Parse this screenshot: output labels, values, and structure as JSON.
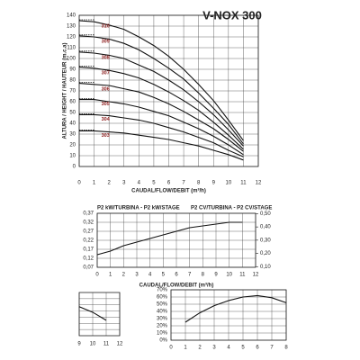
{
  "chart_data": [
    {
      "type": "line",
      "title": "V-NOX 300",
      "ylabel": "ALTURA / HEIGHT / HAUTEUR (m.c.a)",
      "xlabel": "CAUDAL/FLOW/DEBIT (m³/h)",
      "x": [
        0,
        1,
        2,
        3,
        4,
        5,
        6,
        7,
        8,
        9,
        10,
        11
      ],
      "xlim": [
        0,
        12
      ],
      "ylim": [
        0,
        140
      ],
      "xticks": [
        0,
        1,
        2,
        3,
        4,
        5,
        6,
        7,
        8,
        9,
        10,
        11,
        12
      ],
      "yticks": [
        0,
        10,
        20,
        30,
        40,
        50,
        60,
        70,
        80,
        90,
        100,
        110,
        120,
        130,
        140
      ],
      "grid": true,
      "series": [
        {
          "name": "310",
          "color": "#111",
          "values": [
            135,
            134,
            131,
            127,
            120,
            112,
            102,
            90,
            76,
            61,
            43,
            24
          ]
        },
        {
          "name": "309",
          "color": "#111",
          "values": [
            121,
            120,
            118,
            114,
            108,
            100,
            91,
            81,
            68,
            54,
            39,
            21
          ]
        },
        {
          "name": "308",
          "color": "#111",
          "values": [
            106,
            105,
            103,
            100,
            94,
            88,
            80,
            71,
            60,
            48,
            34,
            19
          ]
        },
        {
          "name": "307",
          "color": "#111",
          "values": [
            92,
            91,
            89,
            86,
            82,
            76,
            69,
            61,
            52,
            41,
            29,
            16
          ]
        },
        {
          "name": "306",
          "color": "#111",
          "values": [
            77,
            76,
            75,
            72,
            69,
            64,
            58,
            51,
            43,
            35,
            25,
            14
          ]
        },
        {
          "name": "305",
          "color": "#111",
          "values": [
            62,
            62,
            60,
            58,
            55,
            51,
            47,
            41,
            35,
            28,
            20,
            11
          ]
        },
        {
          "name": "304",
          "color": "#111",
          "values": [
            48,
            48,
            47,
            45,
            43,
            40,
            36,
            32,
            27,
            22,
            15,
            9
          ]
        },
        {
          "name": "303",
          "color": "#111",
          "values": [
            33,
            33,
            32,
            31,
            29,
            27,
            25,
            22,
            19,
            15,
            11,
            6
          ]
        }
      ]
    },
    {
      "type": "line",
      "ylabel": "P2 kW/TURBINA - P2 kW/STAGE",
      "y2label": "P2 CV/TURBINA - P2 CV/STAGE",
      "xlabel": "CAUDAL/FLOW/DEBIT (m³/h)",
      "x": [
        0,
        1,
        2,
        3,
        4,
        5,
        6,
        7,
        8,
        9,
        10,
        11
      ],
      "xlim": [
        0,
        12
      ],
      "ylim": [
        0.07,
        0.37
      ],
      "y2lim": [
        0.095,
        0.503
      ],
      "xticks": [
        0,
        1,
        2,
        3,
        4,
        5,
        6,
        7,
        8,
        9,
        10,
        11,
        12
      ],
      "yticks": [
        {
          "value": 0.07,
          "label": "0,07"
        },
        {
          "value": 0.12,
          "label": "0,12"
        },
        {
          "value": 0.17,
          "label": "0,17"
        },
        {
          "value": 0.22,
          "label": "0,22"
        },
        {
          "value": 0.27,
          "label": "0,27"
        },
        {
          "value": 0.32,
          "label": "0,32"
        },
        {
          "value": 0.37,
          "label": "0,37"
        }
      ],
      "y2ticks": [
        {
          "value": 0.1,
          "label": "0,10"
        },
        {
          "value": 0.2,
          "label": "0,20"
        },
        {
          "value": 0.3,
          "label": "0,30"
        },
        {
          "value": 0.4,
          "label": "0,40"
        },
        {
          "value": 0.5,
          "label": "0,50"
        }
      ],
      "grid": true,
      "series": [
        {
          "color": "#111",
          "values": [
            0.14,
            0.16,
            0.19,
            0.21,
            0.23,
            0.25,
            0.27,
            0.29,
            0.3,
            0.31,
            0.32,
            0.32
          ]
        }
      ]
    },
    {
      "type": "line",
      "x": [
        9,
        10,
        11
      ],
      "xlim": [
        9,
        12
      ],
      "ylim": [
        0,
        70
      ],
      "xticks": [
        9,
        10,
        11,
        12
      ],
      "grid": true,
      "series": [
        {
          "color": "#111",
          "values": [
            47,
            38,
            25
          ]
        }
      ]
    },
    {
      "type": "line",
      "x": [
        1,
        2,
        3,
        4,
        5,
        6,
        7,
        8
      ],
      "xlim": [
        0,
        8
      ],
      "ylim": [
        0,
        70
      ],
      "xticks": [
        0,
        1,
        2,
        3,
        4,
        5,
        6,
        7,
        8
      ],
      "yticks": [
        {
          "value": 0,
          "label": "0%"
        },
        {
          "value": 10,
          "label": "10%"
        },
        {
          "value": 20,
          "label": "20%"
        },
        {
          "value": 30,
          "label": "30%"
        },
        {
          "value": 40,
          "label": "40%"
        },
        {
          "value": 50,
          "label": "50%"
        },
        {
          "value": 60,
          "label": "60%"
        },
        {
          "value": 70,
          "label": "70%"
        }
      ],
      "grid": true,
      "series": [
        {
          "color": "#111",
          "values": [
            25,
            38,
            48,
            55,
            60,
            62,
            59,
            52
          ]
        }
      ]
    }
  ]
}
